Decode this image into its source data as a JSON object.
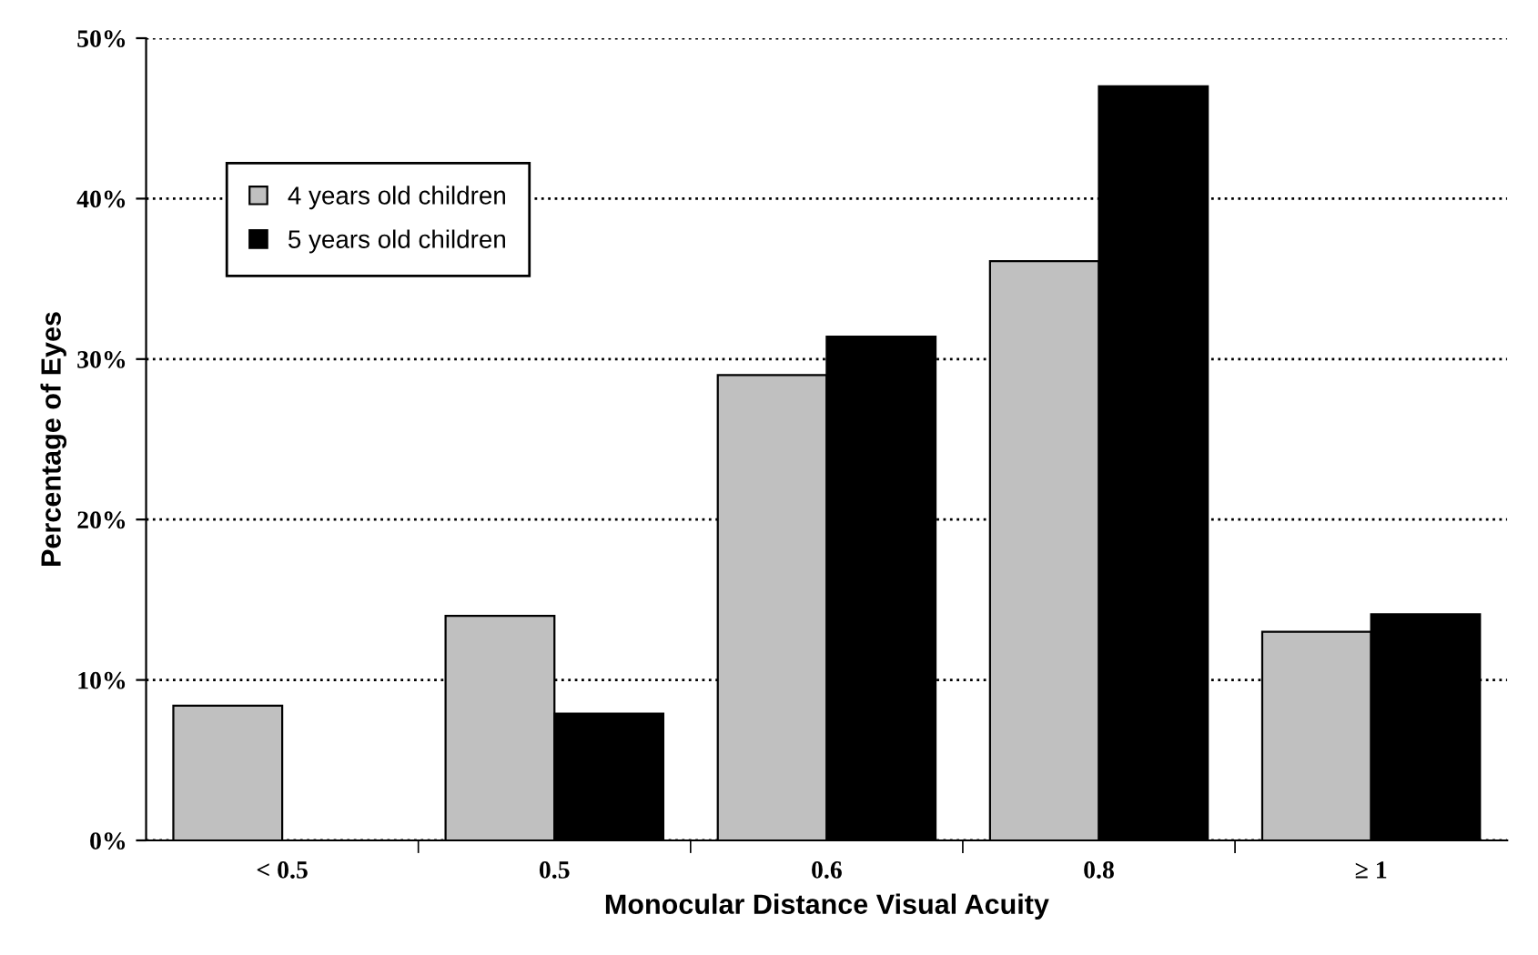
{
  "chart_data": {
    "type": "bar",
    "xlabel": "Monocular Distance Visual Acuity",
    "ylabel": "Percentage of Eyes",
    "categories": [
      "< 0.5",
      "0.5",
      "0.6",
      "0.8",
      "≥ 1"
    ],
    "series": [
      {
        "name": "4 years old children",
        "color": "#c0c0c0",
        "values": [
          8.4,
          14.0,
          29.0,
          36.1,
          13.0
        ]
      },
      {
        "name": "5 years old children",
        "color": "#000000",
        "values": [
          0,
          7.9,
          31.4,
          47.0,
          14.1
        ]
      }
    ],
    "ylim": [
      0,
      50
    ],
    "yticks": [
      {
        "value": 0,
        "label": "0%"
      },
      {
        "value": 10,
        "label": "10%"
      },
      {
        "value": 20,
        "label": "20%"
      },
      {
        "value": 30,
        "label": "30%"
      },
      {
        "value": 40,
        "label": "40%"
      },
      {
        "value": 50,
        "label": "50%"
      }
    ],
    "grid": "y",
    "line_style": "dotted",
    "legend": "top left"
  }
}
